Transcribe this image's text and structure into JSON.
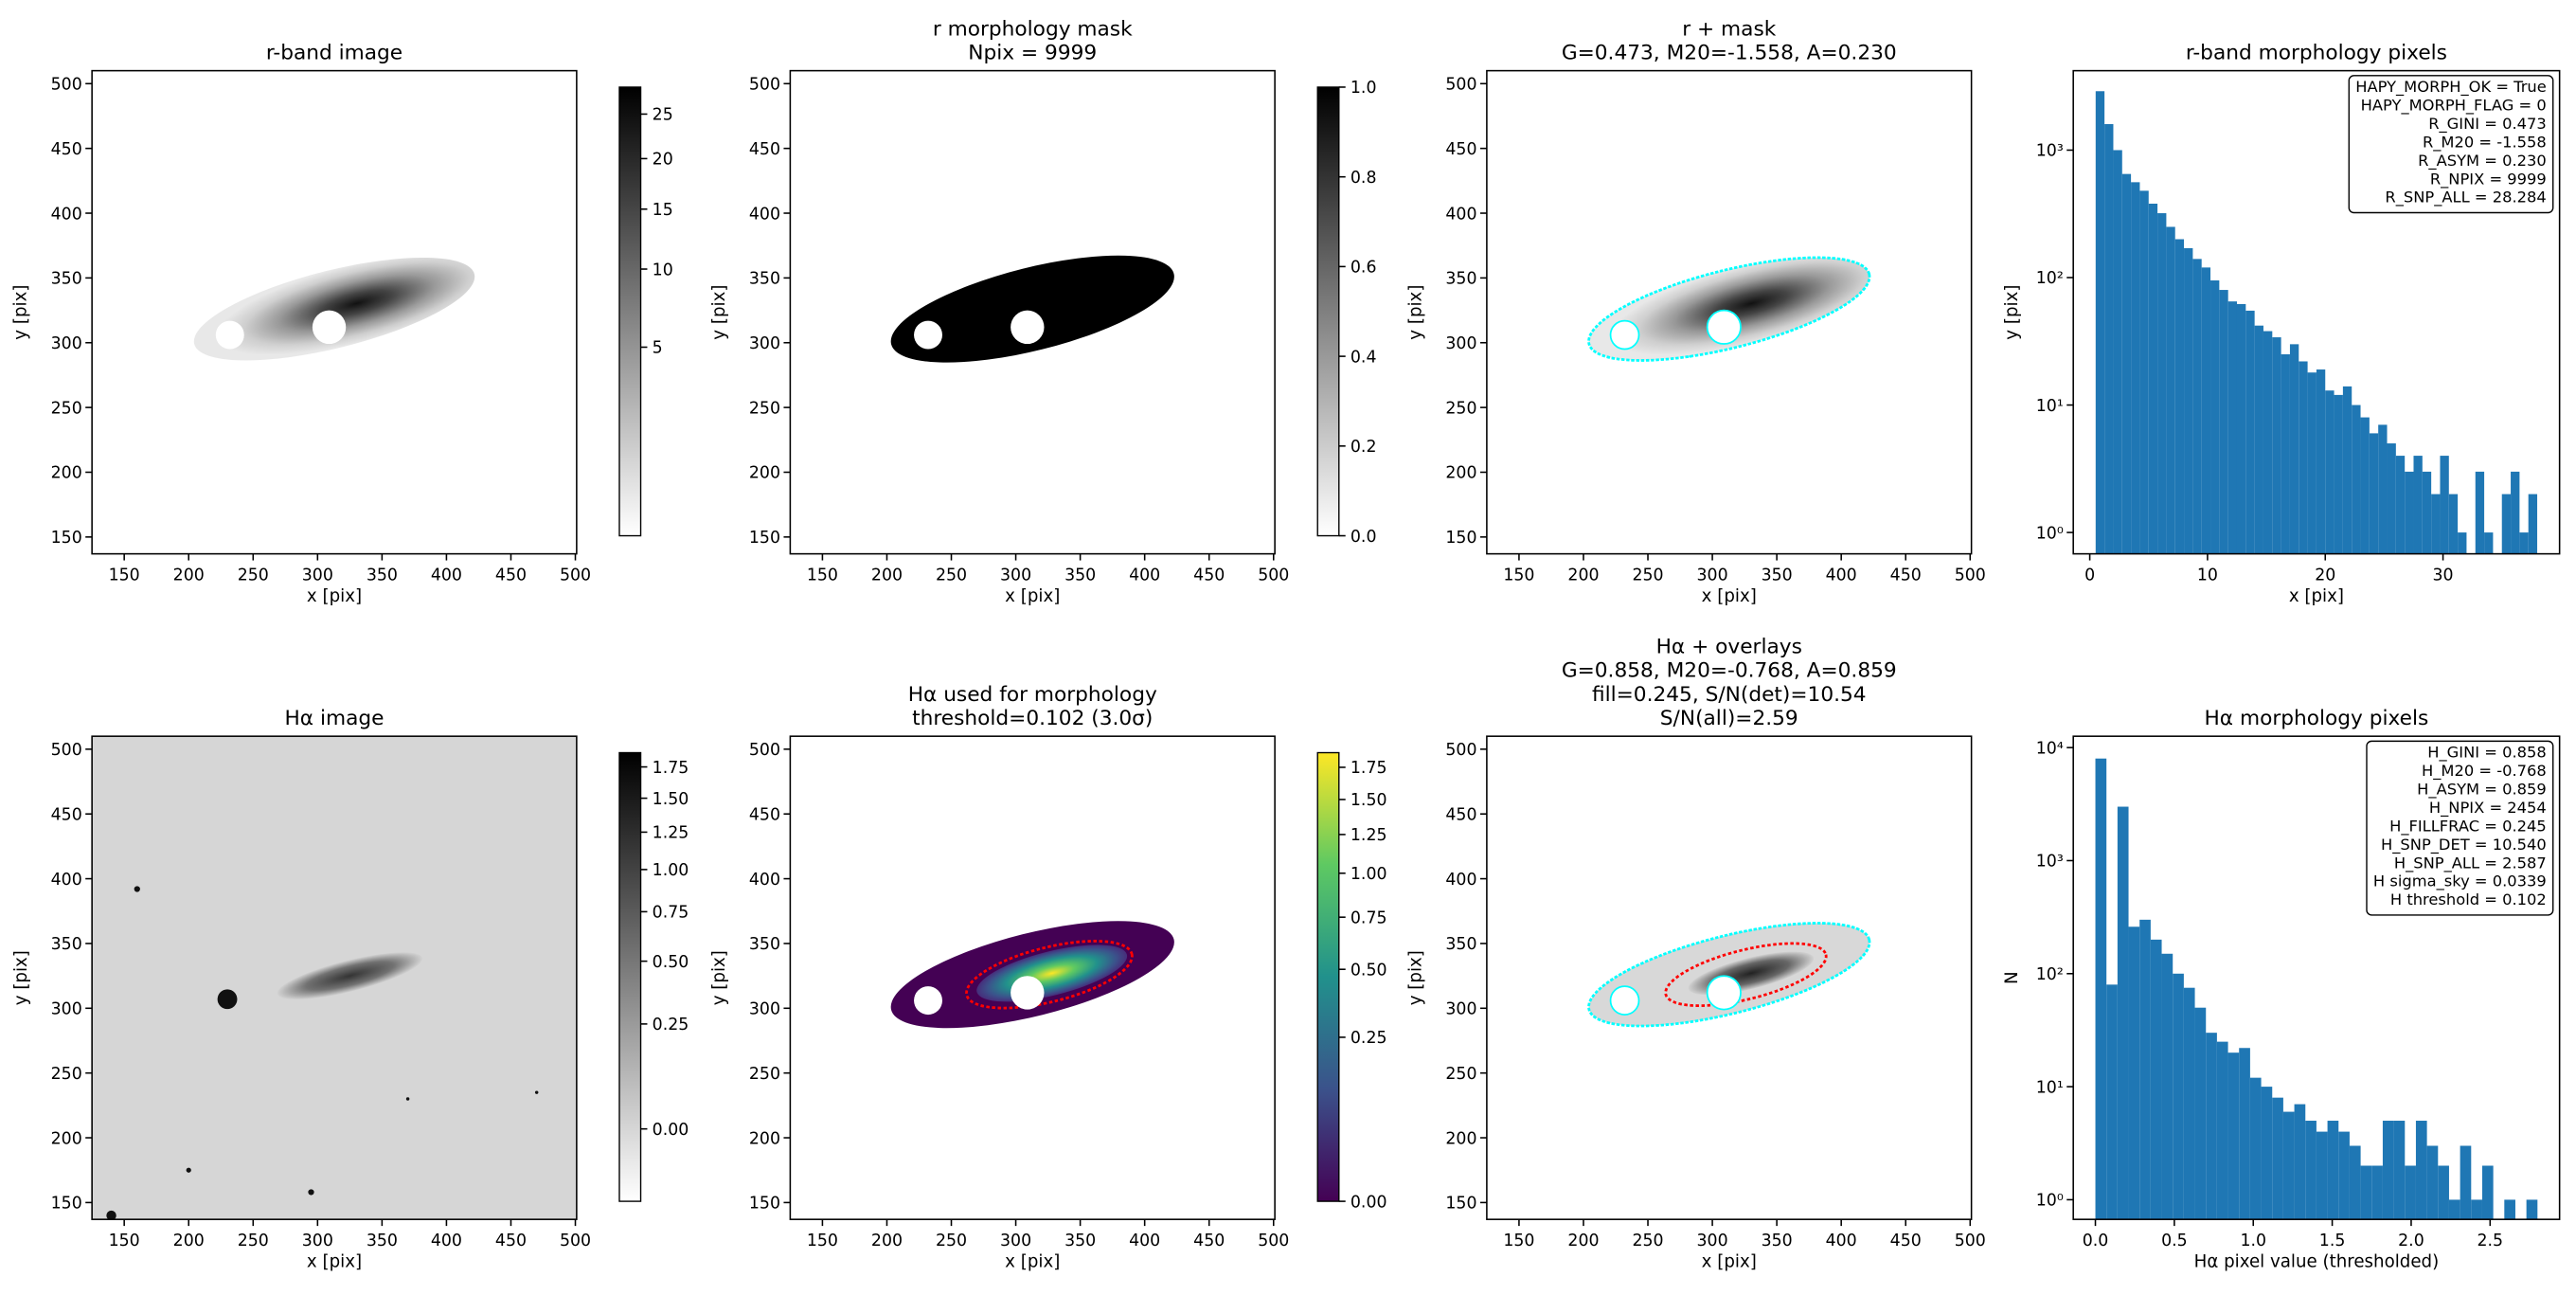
{
  "chart_data": [
    {
      "type": "image",
      "title": "r-band image",
      "xlabel": "x [pix]",
      "ylabel": "y [pix]",
      "xlim": [
        125,
        501
      ],
      "ylim": [
        137,
        510
      ],
      "xticks": [
        150,
        200,
        250,
        300,
        350,
        400,
        450,
        500
      ],
      "yticks": [
        150,
        200,
        250,
        300,
        350,
        400,
        450,
        500
      ],
      "cmap": "gray_r",
      "colorbar": {
        "clim": [
          0,
          28.3
        ],
        "stretch": "sqrt",
        "ticks": [
          5,
          10,
          15,
          20,
          25
        ]
      }
    },
    {
      "type": "image",
      "title": [
        "r morphology mask",
        "Npix = 9999"
      ],
      "xlabel": "x [pix]",
      "ylabel": "y [pix]",
      "xlim": [
        125,
        501
      ],
      "ylim": [
        137,
        510
      ],
      "xticks": [
        150,
        200,
        250,
        300,
        350,
        400,
        450,
        500
      ],
      "yticks": [
        150,
        200,
        250,
        300,
        350,
        400,
        450,
        500
      ],
      "cmap": "gray_r",
      "colorbar": {
        "clim": [
          0,
          1
        ],
        "stretch": "linear",
        "ticks": [
          {
            "value": 0,
            "label": "0.0"
          },
          0.2,
          0.4,
          0.6,
          0.8,
          {
            "value": 1,
            "label": "1.0"
          }
        ]
      }
    },
    {
      "type": "image",
      "title": [
        "r + mask",
        "G=0.473, M20=-1.558, A=0.230"
      ],
      "xlabel": "x [pix]",
      "ylabel": "y [pix]",
      "xlim": [
        125,
        501
      ],
      "ylim": [
        137,
        510
      ],
      "xticks": [
        150,
        200,
        250,
        300,
        350,
        400,
        450,
        500
      ],
      "yticks": [
        150,
        200,
        250,
        300,
        350,
        400,
        450,
        500
      ],
      "cmap": "gray_r",
      "contour_colors": [
        "cyan"
      ]
    },
    {
      "type": "histogram",
      "title": "r-band morphology pixels",
      "xlabel": "x [pix]",
      "ylabel": "y [pix]",
      "color": "#1f77b4",
      "log_y": true,
      "bins": [
        0.5,
        1.25,
        2,
        2.75,
        3.5,
        4.25,
        5,
        5.75,
        6.5,
        7.25,
        8,
        8.75,
        9.5,
        10.25,
        11,
        11.75,
        12.5,
        13.25,
        14,
        14.75,
        15.5,
        16.25,
        17,
        17.75,
        18.5,
        19.25,
        20,
        20.75,
        21.5,
        22.25,
        23,
        23.75,
        24.5,
        25.25,
        26,
        26.75,
        27.5,
        28.25,
        29,
        29.75,
        30.5,
        31.25,
        32,
        32.75,
        33.5,
        34.25,
        35,
        35.75,
        36.5,
        37.25,
        38
      ],
      "counts": [
        2900,
        1600,
        1000,
        650,
        560,
        480,
        380,
        320,
        250,
        200,
        170,
        140,
        120,
        95,
        80,
        65,
        62,
        55,
        42,
        38,
        34,
        25,
        30,
        22,
        18,
        19,
        13,
        12,
        14,
        10,
        8,
        6,
        7,
        5,
        4,
        3,
        4,
        3,
        2,
        4,
        2,
        1,
        0,
        3,
        1,
        0,
        2,
        3,
        1,
        2
      ],
      "xlim": [
        -1.4,
        39.9
      ],
      "xticks": [
        0,
        10,
        20,
        30
      ],
      "ylim": [
        0.68,
        4200
      ],
      "yticks": [
        {
          "value": 1,
          "label": "10⁰"
        },
        {
          "value": 10,
          "label": "10¹"
        },
        {
          "value": 100,
          "label": "10²"
        },
        {
          "value": 1000,
          "label": "10³"
        }
      ],
      "annotation": [
        "HAPY_MORPH_OK = True",
        "HAPY_MORPH_FLAG = 0",
        "R_GINI = 0.473",
        "R_M20 = -1.558",
        "R_ASYM = 0.230",
        "R_NPIX = 9999",
        "R_SNP_ALL = 28.284"
      ]
    },
    {
      "type": "image",
      "title": "Hα image",
      "xlabel": "x [pix]",
      "ylabel": "y [pix]",
      "xlim": [
        125,
        501
      ],
      "ylim": [
        137,
        510
      ],
      "xticks": [
        150,
        200,
        250,
        300,
        350,
        400,
        450,
        500
      ],
      "yticks": [
        150,
        200,
        250,
        300,
        350,
        400,
        450,
        500
      ],
      "cmap": "gray_r",
      "colorbar": {
        "clim": [
          -0.05,
          1.87
        ],
        "stretch": "sqrt",
        "ticks": [
          {
            "value": 0,
            "label": "0.00"
          },
          0.25,
          {
            "value": 0.5,
            "label": "0.50"
          },
          0.75,
          {
            "value": 1,
            "label": "1.00"
          },
          1.25,
          {
            "value": 1.5,
            "label": "1.50"
          },
          1.75
        ]
      }
    },
    {
      "type": "image",
      "title": [
        "Hα used for morphology",
        "threshold=0.102 (3.0σ)"
      ],
      "xlabel": "x [pix]",
      "ylabel": "y [pix]",
      "xlim": [
        125,
        501
      ],
      "ylim": [
        137,
        510
      ],
      "xticks": [
        150,
        200,
        250,
        300,
        350,
        400,
        450,
        500
      ],
      "yticks": [
        150,
        200,
        250,
        300,
        350,
        400,
        450,
        500
      ],
      "cmap": "viridis",
      "contour_colors": [
        "red"
      ],
      "colorbar": {
        "clim": [
          0,
          1.87
        ],
        "stretch": "sqrt",
        "ticks": [
          {
            "value": 0,
            "label": "0.00"
          },
          0.25,
          {
            "value": 0.5,
            "label": "0.50"
          },
          0.75,
          {
            "value": 1,
            "label": "1.00"
          },
          1.25,
          {
            "value": 1.5,
            "label": "1.50"
          },
          1.75
        ]
      }
    },
    {
      "type": "image",
      "title": [
        "Hα + overlays",
        "G=0.858, M20=-0.768, A=0.859",
        "fill=0.245, S/N(det)=10.54",
        "S/N(all)=2.59"
      ],
      "xlabel": "x [pix]",
      "ylabel": "y [pix]",
      "xlim": [
        125,
        501
      ],
      "ylim": [
        137,
        510
      ],
      "xticks": [
        150,
        200,
        250,
        300,
        350,
        400,
        450,
        500
      ],
      "yticks": [
        150,
        200,
        250,
        300,
        350,
        400,
        450,
        500
      ],
      "cmap": "gray_r",
      "contour_colors": [
        "red",
        "cyan"
      ]
    },
    {
      "type": "histogram",
      "title": "Hα morphology pixels",
      "xlabel": "Hα pixel value (thresholded)",
      "ylabel": "N",
      "color": "#1f77b4",
      "log_y": true,
      "bins": [
        0,
        0.07,
        0.14,
        0.21,
        0.28,
        0.35,
        0.42,
        0.49,
        0.56,
        0.63,
        0.7,
        0.77,
        0.84,
        0.91,
        0.98,
        1.05,
        1.12,
        1.19,
        1.26,
        1.33,
        1.4,
        1.47,
        1.54,
        1.61,
        1.68,
        1.75,
        1.82,
        1.89,
        1.96,
        2.03,
        2.1,
        2.17,
        2.24,
        2.31,
        2.38,
        2.45,
        2.52,
        2.59,
        2.66,
        2.73,
        2.8
      ],
      "counts": [
        8000,
        80,
        3000,
        260,
        300,
        200,
        150,
        100,
        75,
        50,
        30,
        25,
        20,
        22,
        12,
        10,
        8,
        6,
        7,
        5,
        4,
        5,
        4,
        3,
        2,
        2,
        5,
        5,
        2,
        5,
        3,
        2,
        1,
        3,
        1,
        2,
        0,
        1,
        0,
        1
      ],
      "xlim": [
        -0.14,
        2.94
      ],
      "xticks": [
        {
          "value": 0,
          "label": "0.0"
        },
        0.5,
        {
          "value": 1,
          "label": "1.0"
        },
        1.5,
        {
          "value": 2,
          "label": "2.0"
        },
        2.5
      ],
      "ylim": [
        0.67,
        12600
      ],
      "yticks": [
        {
          "value": 1,
          "label": "10⁰"
        },
        {
          "value": 10,
          "label": "10¹"
        },
        {
          "value": 100,
          "label": "10²"
        },
        {
          "value": 1000,
          "label": "10³"
        },
        {
          "value": 10000,
          "label": "10⁴"
        }
      ],
      "annotation": [
        "H_GINI = 0.858",
        "H_M20 = -0.768",
        "H_ASYM = 0.859",
        "H_NPIX = 2454",
        "H_FILLFRAC = 0.245",
        "H_SNP_DET = 10.540",
        "H_SNP_ALL = 2.587",
        "H sigma_sky = 0.0339",
        "H threshold = 0.102"
      ]
    }
  ]
}
